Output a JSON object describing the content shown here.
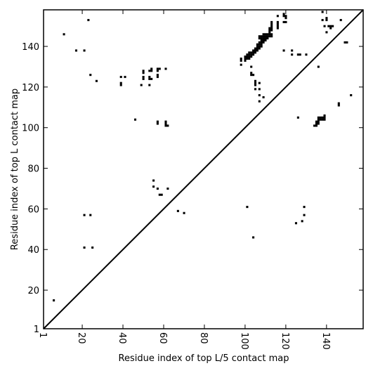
{
  "chart_data": {
    "type": "scatter",
    "title": "",
    "xlabel": "Residue index of top L/5 contact map",
    "ylabel": "Residue index of top L contact map",
    "xlim": [
      1,
      158
    ],
    "ylim": [
      1,
      158
    ],
    "x_ticks": [
      1,
      20,
      40,
      60,
      80,
      100,
      120,
      140
    ],
    "y_ticks": [
      1,
      20,
      40,
      60,
      80,
      100,
      120,
      140
    ],
    "x_tick_rotation": "vertical",
    "grid": false,
    "diagonal": true,
    "marker": "square",
    "marker_color": "#000000",
    "upper_triangle_points": [
      [
        6,
        15
      ],
      [
        21,
        41
      ],
      [
        25,
        41
      ],
      [
        21,
        57
      ],
      [
        24,
        57
      ],
      [
        67,
        59
      ],
      [
        70,
        58
      ],
      [
        101,
        61
      ],
      [
        104,
        46
      ],
      [
        55,
        71
      ],
      [
        55,
        74
      ],
      [
        57,
        70
      ],
      [
        58,
        67
      ],
      [
        59,
        67
      ],
      [
        62,
        70
      ],
      [
        46,
        104
      ],
      [
        57,
        102
      ],
      [
        57,
        103
      ],
      [
        61,
        101
      ],
      [
        61,
        102
      ],
      [
        61,
        103
      ],
      [
        62,
        101
      ]
    ],
    "lower_triangle_points": [
      [
        11,
        146
      ],
      [
        23,
        153
      ],
      [
        17,
        138
      ],
      [
        21,
        138
      ],
      [
        24,
        126
      ],
      [
        27,
        123
      ],
      [
        39,
        121
      ],
      [
        39,
        122
      ],
      [
        39,
        125
      ],
      [
        41,
        125
      ],
      [
        49,
        121
      ],
      [
        50,
        124
      ],
      [
        50,
        125
      ],
      [
        50,
        127
      ],
      [
        50,
        128
      ],
      [
        53,
        121
      ],
      [
        53,
        124
      ],
      [
        53,
        125
      ],
      [
        53,
        128
      ],
      [
        54,
        124
      ],
      [
        54,
        128
      ],
      [
        54,
        129
      ],
      [
        57,
        125
      ],
      [
        57,
        126
      ],
      [
        57,
        128
      ],
      [
        57,
        129
      ],
      [
        58,
        129
      ],
      [
        61,
        129
      ],
      [
        98,
        131
      ],
      [
        98,
        133
      ],
      [
        98,
        134
      ],
      [
        100,
        133
      ],
      [
        100,
        134
      ],
      [
        100,
        135
      ],
      [
        101,
        134
      ],
      [
        101,
        135
      ],
      [
        101,
        136
      ],
      [
        102,
        134
      ],
      [
        102,
        135
      ],
      [
        102,
        136
      ],
      [
        102,
        137
      ],
      [
        103,
        135
      ],
      [
        103,
        136
      ],
      [
        103,
        137
      ],
      [
        104,
        136
      ],
      [
        104,
        137
      ],
      [
        104,
        138
      ],
      [
        105,
        137
      ],
      [
        105,
        138
      ],
      [
        105,
        139
      ],
      [
        106,
        138
      ],
      [
        106,
        139
      ],
      [
        106,
        140
      ],
      [
        106,
        141
      ],
      [
        107,
        139
      ],
      [
        107,
        140
      ],
      [
        107,
        141
      ],
      [
        107,
        142
      ],
      [
        107,
        144
      ],
      [
        107,
        145
      ],
      [
        108,
        140
      ],
      [
        108,
        141
      ],
      [
        108,
        142
      ],
      [
        108,
        143
      ],
      [
        108,
        144
      ],
      [
        108,
        145
      ],
      [
        109,
        142
      ],
      [
        109,
        143
      ],
      [
        109,
        144
      ],
      [
        109,
        145
      ],
      [
        109,
        146
      ],
      [
        110,
        143
      ],
      [
        110,
        144
      ],
      [
        110,
        145
      ],
      [
        110,
        146
      ],
      [
        111,
        144
      ],
      [
        111,
        145
      ],
      [
        111,
        146
      ],
      [
        112,
        145
      ],
      [
        112,
        146
      ],
      [
        112,
        147
      ],
      [
        112,
        148
      ],
      [
        112,
        149
      ],
      [
        113,
        145
      ],
      [
        113,
        146
      ],
      [
        113,
        148
      ],
      [
        113,
        149
      ],
      [
        113,
        150
      ],
      [
        113,
        151
      ],
      [
        113,
        152
      ],
      [
        116,
        149
      ],
      [
        116,
        150
      ],
      [
        116,
        151
      ],
      [
        116,
        152
      ],
      [
        116,
        155
      ],
      [
        119,
        152
      ],
      [
        119,
        155
      ],
      [
        119,
        156
      ],
      [
        120,
        152
      ],
      [
        120,
        154
      ],
      [
        120,
        155
      ],
      [
        103,
        126
      ],
      [
        103,
        127
      ],
      [
        103,
        130
      ],
      [
        104,
        126
      ],
      [
        105,
        121
      ],
      [
        105,
        122
      ],
      [
        105,
        123
      ],
      [
        105,
        119
      ],
      [
        107,
        122
      ],
      [
        107,
        119
      ],
      [
        107,
        116
      ],
      [
        107,
        113
      ],
      [
        109,
        115
      ],
      [
        119,
        138
      ],
      [
        123,
        136
      ],
      [
        123,
        138
      ],
      [
        126,
        136
      ],
      [
        127,
        136
      ],
      [
        130,
        136
      ],
      [
        126,
        105
      ],
      [
        136,
        130
      ],
      [
        125,
        53
      ],
      [
        128,
        54
      ],
      [
        129,
        57
      ],
      [
        129,
        61
      ],
      [
        134,
        101
      ],
      [
        135,
        101
      ],
      [
        135,
        102
      ],
      [
        135,
        103
      ],
      [
        136,
        102
      ],
      [
        136,
        103
      ],
      [
        136,
        104
      ],
      [
        136,
        105
      ],
      [
        137,
        104
      ],
      [
        137,
        105
      ],
      [
        138,
        104
      ],
      [
        138,
        105
      ],
      [
        139,
        104
      ],
      [
        139,
        105
      ],
      [
        139,
        106
      ],
      [
        138,
        153
      ],
      [
        138,
        157
      ],
      [
        139,
        150
      ],
      [
        140,
        147
      ],
      [
        140,
        153
      ],
      [
        140,
        154
      ],
      [
        141,
        150
      ],
      [
        142,
        149
      ],
      [
        142,
        150
      ],
      [
        143,
        150
      ],
      [
        146,
        111
      ],
      [
        146,
        112
      ],
      [
        147,
        153
      ],
      [
        149,
        142
      ],
      [
        150,
        142
      ],
      [
        152,
        116
      ]
    ]
  }
}
